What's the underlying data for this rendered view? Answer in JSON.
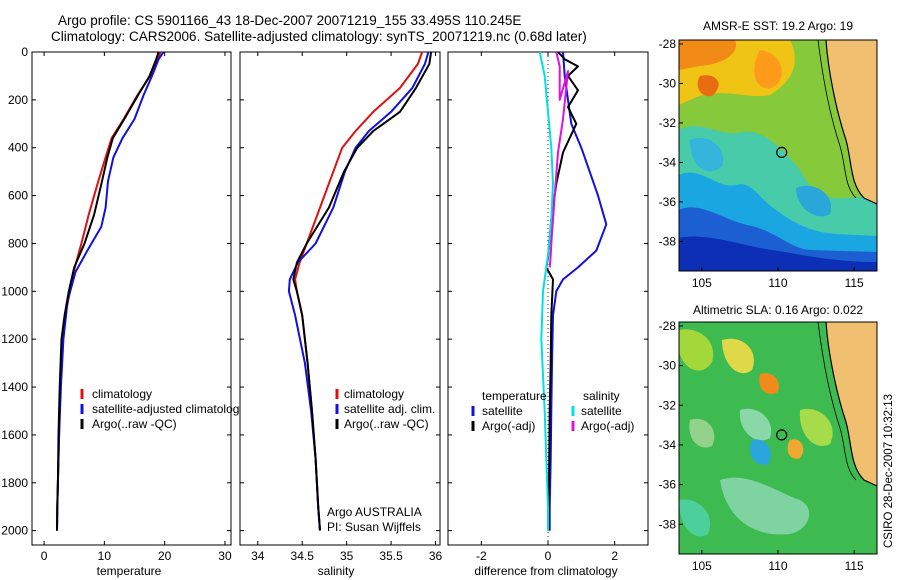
{
  "header": {
    "line1": "Argo profile: CS 5901166_43 18-Dec-2007 20071219_155 33.495S 110.245E",
    "line2": "Climatology: CARS2006. Satellite-adjusted climatology: synTS_20071219.nc (0.68d later)"
  },
  "credit": "CSIRO 28-Dec-2007 10:32:13",
  "colors": {
    "climatology": "#e01010",
    "satellite": "#1010e0",
    "argo": "#000000",
    "sat_salinity": "#00e0e0",
    "argo_salinity_adj": "#e010e0",
    "zero_line": "#000000"
  },
  "chart_data": [
    {
      "type": "line",
      "id": "temperature",
      "xlabel": "temperature",
      "ylabel": "",
      "xlim": [
        -2,
        31
      ],
      "ylim": [
        2060,
        0
      ],
      "xticks": [
        0,
        10,
        20,
        30
      ],
      "yticks": [
        0,
        200,
        400,
        600,
        800,
        1000,
        1200,
        1400,
        1600,
        1800,
        2000
      ],
      "show_yticklabels": true,
      "legend": {
        "placement": "lower-right",
        "entries": [
          {
            "label": "climatology",
            "color": "#e01010"
          },
          {
            "label": "satellite-adjusted climatology",
            "color": "#1010e0"
          },
          {
            "label": "Argo(..raw -QC)",
            "color": "#000000"
          }
        ]
      },
      "series": [
        {
          "key": "climatology",
          "color": "#e01010",
          "x": [
            19.3,
            18.8,
            17.6,
            15.5,
            13.2,
            11.2,
            10.2,
            9.0,
            7.4,
            6.2,
            5.1,
            4.3,
            3.5,
            3.0,
            2.7,
            2.5,
            2.3,
            2.2,
            2.15
          ],
          "y": [
            0,
            30,
            100,
            180,
            280,
            360,
            440,
            540,
            680,
            800,
            900,
            1000,
            1100,
            1200,
            1400,
            1600,
            1800,
            1900,
            2000
          ]
        },
        {
          "key": "satellite",
          "color": "#1010e0",
          "x": [
            19.8,
            19.0,
            17.9,
            16.5,
            15.0,
            13.0,
            11.5,
            10.6,
            10.2,
            9.5,
            7.4,
            5.2,
            3.9,
            3.2,
            2.8,
            2.5,
            2.3,
            2.2,
            2.15
          ],
          "y": [
            0,
            30,
            100,
            180,
            280,
            360,
            440,
            540,
            650,
            730,
            820,
            920,
            1040,
            1200,
            1400,
            1600,
            1800,
            1900,
            2000
          ]
        },
        {
          "key": "argo",
          "color": "#000000",
          "x": [
            19.0,
            18.6,
            17.5,
            15.6,
            13.3,
            11.4,
            10.5,
            9.6,
            8.3,
            6.7,
            5.0,
            4.1,
            3.4,
            2.9,
            2.6,
            2.4,
            2.3,
            2.2,
            2.15
          ],
          "y": [
            0,
            30,
            100,
            180,
            280,
            360,
            440,
            540,
            680,
            800,
            900,
            1000,
            1100,
            1200,
            1400,
            1600,
            1800,
            1900,
            2000
          ]
        }
      ]
    },
    {
      "type": "line",
      "id": "salinity",
      "xlabel": "salinity",
      "ylabel": "",
      "xlim": [
        33.8,
        36.05
      ],
      "ylim": [
        2060,
        0
      ],
      "xticks": [
        34,
        34.5,
        35,
        35.5,
        36
      ],
      "yticks": [
        0,
        200,
        400,
        600,
        800,
        1000,
        1200,
        1400,
        1600,
        1800,
        2000
      ],
      "show_yticklabels": false,
      "legend": {
        "placement": "lower-right",
        "entries": [
          {
            "label": "climatology",
            "color": "#e01010"
          },
          {
            "label": "satellite adj. clim.",
            "color": "#1010e0"
          },
          {
            "label": "Argo(..raw -QC)",
            "color": "#000000"
          }
        ]
      },
      "annotations": [
        "Argo AUSTRALIA",
        "PI: Susan Wijffels"
      ],
      "series": [
        {
          "key": "climatology",
          "color": "#e01010",
          "x": [
            35.85,
            35.8,
            35.6,
            35.3,
            35.1,
            34.95,
            34.85,
            34.7,
            34.55,
            34.47,
            34.42,
            34.44,
            34.5,
            34.56,
            34.61,
            34.65,
            34.68,
            34.7
          ],
          "y": [
            0,
            50,
            150,
            250,
            330,
            400,
            500,
            650,
            800,
            880,
            950,
            1000,
            1100,
            1300,
            1500,
            1700,
            1900,
            2000
          ]
        },
        {
          "key": "satellite",
          "color": "#1010e0",
          "x": [
            35.92,
            35.88,
            35.74,
            35.5,
            35.25,
            35.1,
            34.98,
            34.85,
            34.65,
            34.45,
            34.36,
            34.35,
            34.42,
            34.53,
            34.6,
            34.65,
            34.68,
            34.7
          ],
          "y": [
            0,
            50,
            150,
            250,
            330,
            400,
            500,
            650,
            800,
            880,
            950,
            1000,
            1100,
            1300,
            1500,
            1700,
            1900,
            2000
          ]
        },
        {
          "key": "argo",
          "color": "#000000",
          "x": [
            35.95,
            35.93,
            35.78,
            35.6,
            35.3,
            35.12,
            34.97,
            34.8,
            34.55,
            34.44,
            34.4,
            34.44,
            34.5,
            34.56,
            34.61,
            34.65,
            34.68,
            34.7
          ],
          "y": [
            0,
            50,
            150,
            250,
            330,
            400,
            500,
            650,
            800,
            880,
            950,
            1000,
            1100,
            1300,
            1500,
            1700,
            1900,
            2000
          ]
        }
      ]
    },
    {
      "type": "line",
      "id": "difference",
      "xlabel": "difference from climatology",
      "ylabel": "",
      "xlim": [
        -3,
        3
      ],
      "ylim": [
        2060,
        0
      ],
      "xticks": [
        -2,
        0,
        2
      ],
      "yticks": [
        0,
        200,
        400,
        600,
        800,
        1000,
        1200,
        1400,
        1600,
        1800,
        2000
      ],
      "show_yticklabels": false,
      "legend": {
        "placement": "lower-center",
        "groups": [
          {
            "title": "temperature",
            "entries": [
              {
                "label": "satellite",
                "color": "#1010e0"
              },
              {
                "label": "Argo(-adj)",
                "color": "#000000"
              }
            ]
          },
          {
            "title": "salinity",
            "entries": [
              {
                "label": "satellite",
                "color": "#00e0e0"
              },
              {
                "label": "Argo(-adj)",
                "color": "#e010e0"
              }
            ]
          }
        ]
      },
      "series": [
        {
          "key": "temp_satellite",
          "color": "#1010e0",
          "x": [
            0.45,
            0.5,
            0.6,
            0.7,
            1.0,
            1.25,
            1.5,
            1.75,
            1.45,
            0.9,
            0.45,
            0.25,
            0.15,
            0.12,
            0.1,
            0.08,
            0.05,
            0.05
          ],
          "y": [
            0,
            100,
            200,
            300,
            400,
            500,
            600,
            720,
            830,
            900,
            950,
            1000,
            1100,
            1300,
            1500,
            1700,
            1900,
            2000
          ]
        },
        {
          "key": "temp_argo",
          "color": "#000000",
          "x": [
            0.3,
            0.5,
            0.9,
            0.6,
            0.9,
            0.6,
            0.85,
            0.45,
            0.25,
            0.1,
            0.0,
            -0.05,
            0.15,
            0.1,
            0.08,
            0.05,
            0.03,
            0.02
          ],
          "y": [
            0,
            30,
            60,
            100,
            160,
            230,
            300,
            420,
            550,
            700,
            860,
            900,
            950,
            1100,
            1300,
            1500,
            1800,
            2000
          ]
        },
        {
          "key": "sal_satellite",
          "color": "#00e0e0",
          "x": [
            -0.25,
            -0.1,
            0.0,
            0.1,
            0.15,
            0.1,
            0.0,
            -0.15,
            -0.2,
            -0.1,
            -0.05,
            0.0,
            0.0
          ],
          "y": [
            0,
            100,
            250,
            400,
            550,
            700,
            850,
            1000,
            1200,
            1500,
            1700,
            1900,
            2000
          ]
        },
        {
          "key": "sal_argo",
          "color": "#e010e0",
          "x": [
            0.25,
            0.35,
            0.35,
            0.6,
            0.45,
            0.3,
            0.2,
            0.1,
            0.08,
            0.05
          ],
          "y": [
            0,
            60,
            200,
            80,
            280,
            420,
            600,
            800,
            850,
            900
          ]
        }
      ]
    },
    {
      "type": "heatmap",
      "id": "sst_map",
      "title": "AMSR-E SST: 19.2 Argo: 19",
      "xlim": [
        103.5,
        116.5
      ],
      "ylim": [
        -39.5,
        -27.8
      ],
      "xticks": [
        105,
        110,
        115
      ],
      "yticks": [
        -28,
        -30,
        -32,
        -34,
        -36,
        -38
      ],
      "marker": {
        "lon": 110.245,
        "lat": -33.495
      }
    },
    {
      "type": "heatmap",
      "id": "sla_map",
      "title": "Altimetric SLA: 0.16 Argo: 0.022",
      "xlim": [
        103.5,
        116.5
      ],
      "ylim": [
        -39.5,
        -27.8
      ],
      "xticks": [
        105,
        110,
        115
      ],
      "yticks": [
        -28,
        -30,
        -32,
        -34,
        -36,
        -38
      ],
      "marker": {
        "lon": 110.245,
        "lat": -33.495
      }
    }
  ]
}
